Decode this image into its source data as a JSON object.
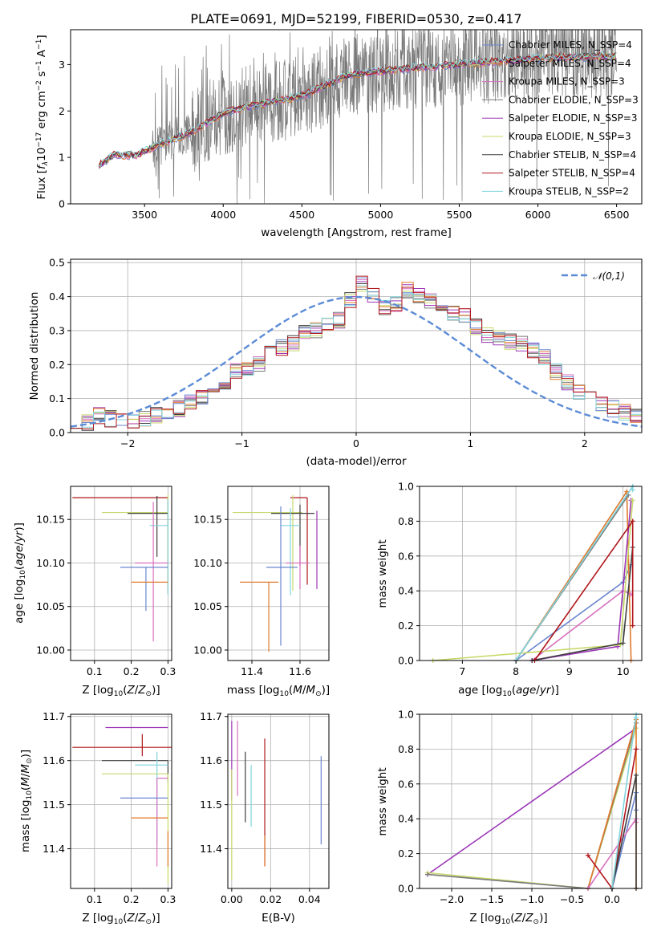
{
  "colors": [
    "#6a86d0",
    "#e07a2e",
    "#d86fbf",
    "#7a7a7a",
    "#9a36b6",
    "#c8d96a",
    "#3e3e3e",
    "#b0161b",
    "#80d4dc"
  ],
  "chart_data": [
    {
      "id": "spectrum",
      "type": "line",
      "title": "PLATE=0691, MJD=52199, FIBERID=0530, z=0.417",
      "xlabel": "wavelength [Angstrom, rest frame]",
      "ylabel": "Flux [f_λ 10^-17 erg cm^-2 s^-1 A^-1]",
      "xlim": [
        3030,
        6660
      ],
      "ylim": [
        0,
        3.75
      ],
      "xticks": [
        "3500",
        "4000",
        "4500",
        "5000",
        "5500",
        "6000",
        "6500"
      ],
      "xtick_values": [
        3500,
        4000,
        4500,
        5000,
        5500,
        6000,
        6500
      ],
      "yticks": [
        "0",
        "1",
        "2",
        "3"
      ],
      "ytick_values": [
        0,
        1,
        2,
        3
      ],
      "grid": false,
      "legend_position": "top-right",
      "data_range": [
        3210,
        6500
      ],
      "continuum": [
        [
          3210,
          0.82
        ],
        [
          3300,
          1.05
        ],
        [
          3450,
          1.05
        ],
        [
          3600,
          1.28
        ],
        [
          3800,
          1.55
        ],
        [
          4000,
          1.95
        ],
        [
          4200,
          2.12
        ],
        [
          4500,
          2.32
        ],
        [
          4800,
          2.78
        ],
        [
          5000,
          2.85
        ],
        [
          5200,
          2.92
        ],
        [
          5500,
          3.0
        ],
        [
          5800,
          3.08
        ],
        [
          6100,
          3.15
        ],
        [
          6500,
          3.18
        ]
      ],
      "series": [
        {
          "name": "Chabrier MILES, N_SSP=4"
        },
        {
          "name": "Salpeter MILES, N_SSP=4"
        },
        {
          "name": "Kroupa MILES, N_SSP=3"
        },
        {
          "name": "Chabrier ELODIE, N_SSP=3"
        },
        {
          "name": "Salpeter ELODIE, N_SSP=3"
        },
        {
          "name": "Kroupa ELODIE, N_SSP=3"
        },
        {
          "name": "Chabrier STELIB, N_SSP=4"
        },
        {
          "name": "Salpeter STELIB, N_SSP=4"
        },
        {
          "name": "Kroupa STELIB, N_SSP=2"
        }
      ]
    },
    {
      "id": "residuals",
      "type": "bar",
      "xlabel": "(data-model)/error",
      "ylabel": "Normed distribution",
      "xlim": [
        -2.5,
        2.5
      ],
      "ylim": [
        0,
        0.51
      ],
      "xticks": [
        "−2",
        "−1",
        "0",
        "1",
        "2"
      ],
      "xtick_values": [
        -2,
        -1,
        0,
        1,
        2
      ],
      "yticks": [
        "0.0",
        "0.1",
        "0.2",
        "0.3",
        "0.4",
        "0.5"
      ],
      "ytick_values": [
        0,
        0.1,
        0.2,
        0.3,
        0.4,
        0.5
      ],
      "grid": true,
      "legend_position": "top-right",
      "legend": "𝒩(0,1)",
      "bin_width": 0.1,
      "bin_start": -2.5,
      "base_heights": [
        0.02,
        0.03,
        0.05,
        0.04,
        0.03,
        0.03,
        0.04,
        0.05,
        0.06,
        0.07,
        0.09,
        0.1,
        0.12,
        0.15,
        0.18,
        0.19,
        0.2,
        0.23,
        0.25,
        0.26,
        0.29,
        0.3,
        0.32,
        0.33,
        0.39,
        0.44,
        0.4,
        0.37,
        0.38,
        0.42,
        0.4,
        0.39,
        0.38,
        0.35,
        0.34,
        0.31,
        0.29,
        0.28,
        0.27,
        0.26,
        0.24,
        0.22,
        0.18,
        0.15,
        0.12,
        0.1,
        0.08,
        0.07,
        0.06,
        0.05
      ]
    },
    {
      "id": "age-vs-Z",
      "type": "scatter",
      "xlabel": "Z [log10(Z/Z⊙)]",
      "ylabel": "age [log10(age/yr)]",
      "xlim": [
        0.035,
        0.31
      ],
      "ylim": [
        9.988,
        10.188
      ],
      "xticks": [
        "0.1",
        "0.2",
        "0.3"
      ],
      "xtick_values": [
        0.1,
        0.2,
        0.3
      ],
      "yticks": [
        "10.00",
        "10.05",
        "10.10",
        "10.15"
      ],
      "ytick_values": [
        10.0,
        10.05,
        10.1,
        10.15
      ],
      "grid": true,
      "points": [
        {
          "x": 0.3,
          "y": 10.175,
          "xerr": [
            0.26,
            0.0
          ],
          "yerr": [
            0.11,
            0.0
          ],
          "c": 7
        },
        {
          "x": 0.3,
          "y": 10.158,
          "xerr": [
            0.18,
            0.0
          ],
          "yerr": [
            0.09,
            0.02
          ],
          "c": 5
        },
        {
          "x": 0.27,
          "y": 10.157,
          "xerr": [
            0.08,
            0.03
          ],
          "yerr": [
            0.05,
            0.02
          ],
          "c": 6
        },
        {
          "x": 0.3,
          "y": 10.143,
          "xerr": [
            0.05,
            0.0
          ],
          "yerr": [
            0.08,
            0.03
          ],
          "c": 8
        },
        {
          "x": 0.26,
          "y": 10.1,
          "xerr": [
            0.05,
            0.04
          ],
          "yerr": [
            0.09,
            0.07
          ],
          "c": 2
        },
        {
          "x": 0.24,
          "y": 10.095,
          "xerr": [
            0.07,
            0.06
          ],
          "yerr": [
            0.05,
            0.0
          ],
          "c": 0
        },
        {
          "x": 0.26,
          "y": 10.078,
          "xerr": [
            0.06,
            0.04
          ],
          "yerr": [
            0.0,
            0.0
          ],
          "c": 1
        }
      ]
    },
    {
      "id": "age-vs-mass",
      "type": "scatter",
      "xlabel": "mass [log10(M/M⊙)]",
      "ylabel": "",
      "xlim": [
        11.3,
        11.72
      ],
      "ylim": [
        9.988,
        10.188
      ],
      "xticks": [
        "11.4",
        "11.6"
      ],
      "xtick_values": [
        11.4,
        11.6
      ],
      "yticks": [
        "10.00",
        "10.05",
        "10.10",
        "10.15"
      ],
      "ytick_values": [
        10.0,
        10.05,
        10.1,
        10.15
      ],
      "grid": true,
      "points": [
        {
          "x": 11.63,
          "y": 10.175,
          "xerr": [
            0.07,
            0.0
          ],
          "yerr": [
            0.1,
            0.0
          ],
          "c": 7
        },
        {
          "x": 11.57,
          "y": 10.158,
          "xerr": [
            0.25,
            0.04
          ],
          "yerr": [
            0.09,
            0.02
          ],
          "c": 5
        },
        {
          "x": 11.6,
          "y": 10.157,
          "xerr": [
            0.12,
            0.06
          ],
          "yerr": [
            0.06,
            0.01
          ],
          "c": 6
        },
        {
          "x": 11.67,
          "y": 10.16,
          "xerr": [
            0.0,
            0.0
          ],
          "yerr": [
            0.09,
            0.0
          ],
          "c": 4
        },
        {
          "x": 11.56,
          "y": 10.143,
          "xerr": [
            0.04,
            0.04
          ],
          "yerr": [
            0.08,
            0.02
          ],
          "c": 8
        },
        {
          "x": 11.6,
          "y": 10.1,
          "xerr": [
            0.06,
            0.04
          ],
          "yerr": [
            0.03,
            0.02
          ],
          "c": 2
        },
        {
          "x": 11.52,
          "y": 10.095,
          "xerr": [
            0.06,
            0.07
          ],
          "yerr": [
            0.09,
            0.07
          ],
          "c": 0
        },
        {
          "x": 11.47,
          "y": 10.078,
          "xerr": [
            0.12,
            0.04
          ],
          "yerr": [
            0.08,
            0.0
          ],
          "c": 1
        }
      ]
    },
    {
      "id": "mass-weight-vs-age",
      "type": "line",
      "xlabel": "age [log10(age/yr)]",
      "ylabel": "mass weight",
      "xlim": [
        6.2,
        10.35
      ],
      "ylim": [
        0,
        1.0
      ],
      "xticks": [
        "7",
        "8",
        "9",
        "10"
      ],
      "xtick_values": [
        7,
        8,
        9,
        10
      ],
      "yticks": [
        "0.0",
        "0.2",
        "0.4",
        "0.6",
        "0.8",
        "1.0"
      ],
      "ytick_values": [
        0,
        0.2,
        0.4,
        0.6,
        0.8,
        1.0
      ],
      "grid": true,
      "series": [
        {
          "c": 0,
          "points": [
            [
              8.0,
              0.0
            ],
            [
              10.0,
              0.45
            ],
            [
              10.15,
              0.55
            ]
          ]
        },
        {
          "c": 1,
          "points": [
            [
              8.0,
              0.0
            ],
            [
              10.07,
              0.97
            ],
            [
              10.15,
              0.0
            ]
          ]
        },
        {
          "c": 2,
          "points": [
            [
              8.3,
              0.0
            ],
            [
              10.0,
              0.4
            ],
            [
              10.15,
              0.38
            ]
          ]
        },
        {
          "c": 3,
          "points": [
            [
              8.0,
              0.0
            ],
            [
              10.1,
              0.95
            ]
          ]
        },
        {
          "c": 4,
          "points": [
            [
              8.3,
              0.0
            ],
            [
              9.9,
              0.08
            ],
            [
              10.15,
              0.92
            ]
          ]
        },
        {
          "c": 5,
          "points": [
            [
              6.45,
              0.0
            ],
            [
              9.95,
              0.09
            ],
            [
              10.18,
              0.92
            ]
          ]
        },
        {
          "c": 6,
          "points": [
            [
              8.3,
              0.0
            ],
            [
              10.0,
              0.1
            ],
            [
              10.18,
              0.65
            ]
          ]
        },
        {
          "c": 7,
          "points": [
            [
              8.35,
              0.0
            ],
            [
              10.18,
              0.8
            ],
            [
              10.18,
              0.2
            ]
          ]
        },
        {
          "c": 8,
          "points": [
            [
              8.0,
              0.0
            ],
            [
              10.18,
              1.0
            ],
            [
              10.18,
              0.98
            ]
          ]
        }
      ]
    },
    {
      "id": "mass-vs-Z",
      "type": "scatter",
      "xlabel": "Z [log10(Z/Z⊙)]",
      "ylabel": "mass [log10(M/M⊙)]",
      "xlim": [
        0.035,
        0.31
      ],
      "ylim": [
        11.31,
        11.705
      ],
      "xticks": [
        "0.1",
        "0.2",
        "0.3"
      ],
      "xtick_values": [
        0.1,
        0.2,
        0.3
      ],
      "yticks": [
        "11.4",
        "11.5",
        "11.6",
        "11.7"
      ],
      "ytick_values": [
        11.4,
        11.5,
        11.6,
        11.7
      ],
      "grid": true,
      "points": [
        {
          "x": 0.3,
          "y": 11.675,
          "xerr": [
            0.17,
            0.0
          ],
          "yerr": [
            0.0,
            0.0
          ],
          "c": 4
        },
        {
          "x": 0.23,
          "y": 11.63,
          "xerr": [
            0.19,
            0.08
          ],
          "yerr": [
            0.02,
            0.03
          ],
          "c": 7
        },
        {
          "x": 0.3,
          "y": 11.6,
          "xerr": [
            0.18,
            0.0
          ],
          "yerr": [
            0.05,
            0.0
          ],
          "c": 6
        },
        {
          "x": 0.27,
          "y": 11.59,
          "xerr": [
            0.06,
            0.03
          ],
          "yerr": [
            0.18,
            0.03
          ],
          "c": 8
        },
        {
          "x": 0.3,
          "y": 11.57,
          "xerr": [
            0.18,
            0.0
          ],
          "yerr": [
            0.25,
            0.0
          ],
          "c": 5
        },
        {
          "x": 0.27,
          "y": 11.56,
          "xerr": [
            0.0,
            0.03
          ],
          "yerr": [
            0.2,
            0.0
          ],
          "c": 2
        },
        {
          "x": 0.24,
          "y": 11.515,
          "xerr": [
            0.07,
            0.06
          ],
          "yerr": [
            0.0,
            0.0
          ],
          "c": 0
        },
        {
          "x": 0.26,
          "y": 11.47,
          "xerr": [
            0.06,
            0.04
          ],
          "yerr": [
            0.0,
            0.0
          ],
          "c": 1
        },
        {
          "x": 0.3,
          "y": 11.44,
          "xerr": [
            0.0,
            0.0
          ],
          "yerr": [
            0.08,
            0.0
          ],
          "c": 1
        }
      ]
    },
    {
      "id": "mass-vs-EBV",
      "type": "scatter",
      "xlabel": "E(B-V)",
      "ylabel": "",
      "xlim": [
        -0.002,
        0.05
      ],
      "ylim": [
        11.31,
        11.705
      ],
      "xticks": [
        "0.00",
        "0.02",
        "0.04"
      ],
      "xtick_values": [
        0.0,
        0.02,
        0.04
      ],
      "yticks": [
        "11.4",
        "11.5",
        "11.6",
        "11.7"
      ],
      "ytick_values": [
        11.4,
        11.5,
        11.6,
        11.7
      ],
      "grid": true,
      "points": [
        {
          "x": 0.0,
          "y": 11.6,
          "xerr": [
            0,
            0
          ],
          "yerr": [
            0.09,
            0.09
          ],
          "c": 4
        },
        {
          "x": 0.0,
          "y": 11.45,
          "xerr": [
            0,
            0
          ],
          "yerr": [
            0.12,
            0.13
          ],
          "c": 5
        },
        {
          "x": 0.003,
          "y": 11.6,
          "xerr": [
            0,
            0
          ],
          "yerr": [
            0.08,
            0.09
          ],
          "c": 2
        },
        {
          "x": 0.007,
          "y": 11.54,
          "xerr": [
            0,
            0
          ],
          "yerr": [
            0.08,
            0.08
          ],
          "c": 6
        },
        {
          "x": 0.01,
          "y": 11.51,
          "xerr": [
            0,
            0
          ],
          "yerr": [
            0.06,
            0.08
          ],
          "c": 8
        },
        {
          "x": 0.017,
          "y": 11.53,
          "xerr": [
            0,
            0
          ],
          "yerr": [
            0.17,
            0.12
          ],
          "c": 7
        },
        {
          "x": 0.017,
          "y": 11.43,
          "xerr": [
            0,
            0
          ],
          "yerr": [
            0.07,
            0.0
          ],
          "c": 1
        },
        {
          "x": 0.046,
          "y": 11.51,
          "xerr": [
            0,
            0
          ],
          "yerr": [
            0.1,
            0.1
          ],
          "c": 0
        }
      ]
    },
    {
      "id": "mass-weight-vs-Z",
      "type": "line",
      "xlabel": "Z [log10(Z/Z⊙)]",
      "ylabel": "mass weight",
      "xlim": [
        -2.4,
        0.37
      ],
      "ylim": [
        0,
        1.0
      ],
      "xticks": [
        "−2.0",
        "−1.5",
        "−1.0",
        "−0.5",
        "0.0"
      ],
      "xtick_values": [
        -2.0,
        -1.5,
        -1.0,
        -0.5,
        0.0
      ],
      "yticks": [
        "0.0",
        "0.2",
        "0.4",
        "0.6",
        "0.8",
        "1.0"
      ],
      "ytick_values": [
        0,
        0.2,
        0.4,
        0.6,
        0.8,
        1.0
      ],
      "grid": true,
      "series": [
        {
          "c": 4,
          "points": [
            [
              -2.3,
              0.08
            ],
            [
              0.3,
              0.92
            ]
          ]
        },
        {
          "c": 5,
          "points": [
            [
              -2.3,
              0.09
            ],
            [
              -0.3,
              0.0
            ],
            [
              0.3,
              0.92
            ]
          ]
        },
        {
          "c": 3,
          "points": [
            [
              -2.3,
              0.08
            ],
            [
              -0.3,
              0.0
            ],
            [
              0.3,
              0.95
            ]
          ]
        },
        {
          "c": 1,
          "points": [
            [
              -0.3,
              0.0
            ],
            [
              0.3,
              0.97
            ],
            [
              0.3,
              0.0
            ]
          ]
        },
        {
          "c": 0,
          "points": [
            [
              0.0,
              0.0
            ],
            [
              0.3,
              0.55
            ],
            [
              0.3,
              0.45
            ]
          ]
        },
        {
          "c": 2,
          "points": [
            [
              -0.3,
              0.0
            ],
            [
              0.3,
              0.4
            ],
            [
              0.3,
              0.38
            ]
          ]
        },
        {
          "c": 7,
          "points": [
            [
              -0.3,
              0.19
            ],
            [
              0.0,
              0.0
            ],
            [
              0.3,
              0.8
            ]
          ]
        },
        {
          "c": 6,
          "points": [
            [
              0.0,
              0.0
            ],
            [
              0.3,
              0.65
            ],
            [
              0.3,
              0.0
            ]
          ]
        },
        {
          "c": 8,
          "points": [
            [
              0.0,
              0.0
            ],
            [
              0.3,
              1.0
            ],
            [
              0.3,
              0.98
            ]
          ]
        }
      ]
    }
  ]
}
